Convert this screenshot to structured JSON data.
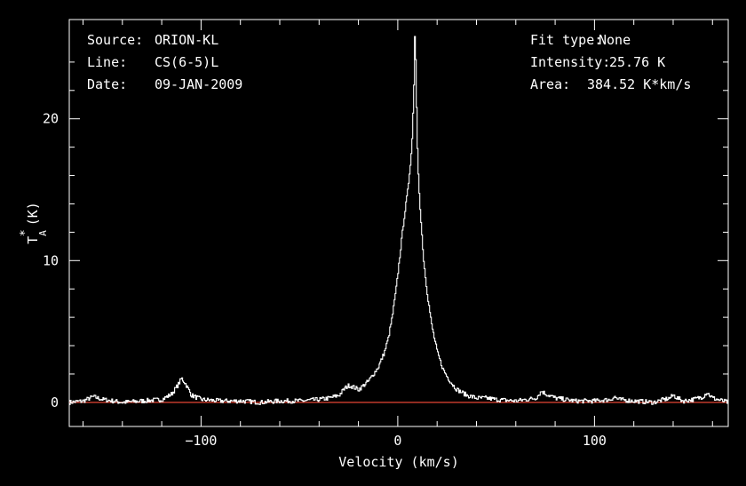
{
  "header": {
    "source_label": "Source:",
    "source_value": "ORION-KL",
    "line_label": "Line:",
    "line_value": "CS(6-5)L",
    "date_label": "Date:",
    "date_value": "09-JAN-2009",
    "fit_label": "Fit type:",
    "fit_value": "None",
    "intensity_label": "Intensity:",
    "intensity_value": "25.76 K",
    "area_label": "Area:",
    "area_value": "384.52 K*km/s"
  },
  "chart_data": {
    "type": "line",
    "title": "",
    "xlabel": "Velocity (km/s)",
    "ylabel": "T*A (K)",
    "ylabel_main": "T",
    "ylabel_sup": "*",
    "ylabel_sub": "A",
    "ylabel_unit": "(K)",
    "xlim": [
      -167,
      168
    ],
    "ylim": [
      -1.7,
      27
    ],
    "xticks": [
      -100,
      0,
      100
    ],
    "xtick_labels": [
      "−100",
      "0",
      "100"
    ],
    "yticks": [
      0,
      10,
      20
    ],
    "ytick_labels": [
      "0",
      "10",
      "20"
    ],
    "grid": false,
    "colors": {
      "background": "#000000",
      "axes": "#ffffff",
      "spectrum": "#ffffff",
      "baseline": "#c0392b"
    },
    "baseline": 0,
    "series": [
      {
        "values_x": [
          -167,
          -160,
          -155,
          -150,
          -145,
          -140,
          -130,
          -120,
          -115,
          -112,
          -110,
          -108,
          -105,
          -100,
          -90,
          -80,
          -70,
          -60,
          -50,
          -40,
          -35,
          -30,
          -27,
          -25,
          -23,
          -20,
          -15,
          -10,
          -7,
          -5,
          -3,
          -1,
          1,
          3,
          4,
          5,
          6,
          7,
          8,
          8.5,
          9,
          9.5,
          10,
          11,
          12,
          13,
          15,
          17,
          20,
          23,
          25,
          28,
          30,
          35,
          40,
          45,
          50,
          60,
          70,
          73,
          75,
          80,
          90,
          100,
          108,
          110,
          112,
          120,
          130,
          138,
          140,
          142,
          145,
          150,
          155,
          157,
          160,
          165,
          168
        ],
        "values_y": [
          0,
          0.1,
          0.4,
          0.2,
          0.1,
          0,
          0.1,
          0.2,
          0.6,
          1.2,
          1.7,
          1.3,
          0.5,
          0.2,
          0.1,
          0.1,
          0,
          0.1,
          0.1,
          0.2,
          0.3,
          0.5,
          1,
          1.2,
          1.1,
          0.9,
          1.5,
          2.5,
          3.5,
          4.5,
          6,
          8,
          10.5,
          13,
          14,
          15,
          16.5,
          18,
          22,
          25.8,
          24,
          20,
          17,
          14,
          12,
          10,
          7.5,
          5.5,
          3.5,
          2.3,
          1.8,
          1.2,
          0.9,
          0.5,
          0.3,
          0.3,
          0.2,
          0.1,
          0.3,
          0.8,
          0.6,
          0.3,
          0.1,
          0.1,
          0.2,
          0.4,
          0.2,
          0.1,
          0,
          0.3,
          0.5,
          0.3,
          0.1,
          0.2,
          0.4,
          0.7,
          0.3,
          0.1,
          0
        ]
      }
    ]
  }
}
